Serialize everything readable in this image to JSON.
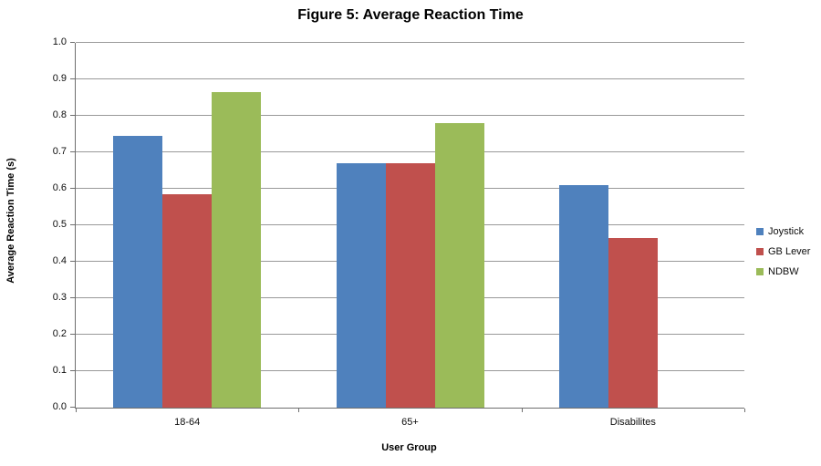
{
  "chart_data": {
    "type": "bar",
    "title": "Figure 5: Average Reaction Time",
    "xlabel": "User Group",
    "ylabel": "Average Reaction Time (s)",
    "categories": [
      "18-64",
      "65+",
      "Disabilites"
    ],
    "series": [
      {
        "name": "Joystick",
        "color": "#4f81bd",
        "values": [
          0.745,
          0.67,
          0.61
        ]
      },
      {
        "name": "GB Lever",
        "color": "#c0504d",
        "values": [
          0.585,
          0.67,
          0.465
        ]
      },
      {
        "name": "NDBW",
        "color": "#9bbb59",
        "values": [
          0.865,
          0.78,
          null
        ]
      }
    ],
    "ylim": [
      0.0,
      1.0
    ],
    "ytick_step": 0.1,
    "ytick_labels": [
      "0.0",
      "0.1",
      "0.2",
      "0.3",
      "0.4",
      "0.5",
      "0.6",
      "0.7",
      "0.8",
      "0.9",
      "1.0"
    ],
    "grid": true,
    "legend_position": "right",
    "colors": {
      "gridline": "#9a9a9a",
      "axis": "#6e6e6e",
      "text": "#0d0d0d",
      "title": "#000000",
      "background": "#ffffff"
    }
  }
}
